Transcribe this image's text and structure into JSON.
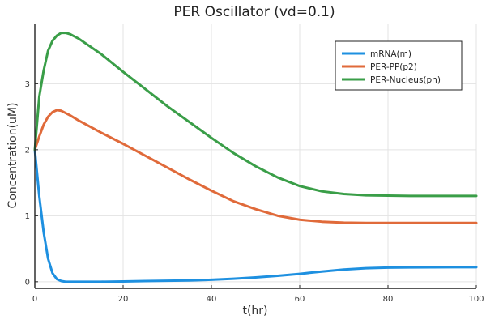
{
  "chart_data": {
    "type": "line",
    "title": "PER Oscillator (vd=0.1)",
    "xlabel": "t(hr)",
    "ylabel": "Concentration(uM)",
    "xlim": [
      0,
      100
    ],
    "ylim": [
      -0.1,
      3.9
    ],
    "xticks": [
      0,
      20,
      40,
      60,
      80,
      100
    ],
    "yticks": [
      0,
      1,
      2,
      3
    ],
    "grid": true,
    "legend_position": "top-right",
    "series": [
      {
        "name": "mRNA(m)",
        "color": "#1e90e0",
        "x": [
          0,
          1,
          2,
          3,
          4,
          5,
          6,
          7,
          8,
          10,
          15,
          20,
          25,
          30,
          35,
          40,
          45,
          50,
          55,
          60,
          65,
          70,
          75,
          80,
          85,
          90,
          95,
          100
        ],
        "y": [
          2.0,
          1.3,
          0.75,
          0.35,
          0.13,
          0.04,
          0.01,
          0.0,
          0.0,
          0.0,
          0.0,
          0.005,
          0.01,
          0.015,
          0.02,
          0.03,
          0.045,
          0.065,
          0.09,
          0.12,
          0.155,
          0.185,
          0.205,
          0.215,
          0.218,
          0.219,
          0.22,
          0.22
        ]
      },
      {
        "name": "PER-PP(p2)",
        "color": "#e06a3a",
        "x": [
          0,
          1,
          2,
          3,
          4,
          5,
          6,
          8,
          10,
          15,
          20,
          25,
          30,
          35,
          40,
          45,
          50,
          55,
          60,
          65,
          70,
          75,
          80,
          85,
          90,
          95,
          100
        ],
        "y": [
          2.0,
          2.2,
          2.38,
          2.5,
          2.57,
          2.6,
          2.59,
          2.52,
          2.44,
          2.26,
          2.09,
          1.91,
          1.73,
          1.55,
          1.38,
          1.22,
          1.1,
          1.0,
          0.94,
          0.91,
          0.895,
          0.89,
          0.89,
          0.89,
          0.89,
          0.89,
          0.89
        ]
      },
      {
        "name": "PER-Nucleus(pn)",
        "color": "#3a9e48",
        "x": [
          0,
          1,
          2,
          3,
          4,
          5,
          6,
          7,
          8,
          10,
          15,
          20,
          25,
          30,
          35,
          40,
          45,
          50,
          55,
          60,
          65,
          70,
          75,
          80,
          85,
          90,
          95,
          100
        ],
        "y": [
          2.0,
          2.8,
          3.2,
          3.5,
          3.65,
          3.73,
          3.77,
          3.77,
          3.75,
          3.68,
          3.45,
          3.18,
          2.92,
          2.66,
          2.42,
          2.18,
          1.95,
          1.75,
          1.58,
          1.45,
          1.37,
          1.33,
          1.31,
          1.305,
          1.3,
          1.3,
          1.3,
          1.3
        ]
      }
    ]
  }
}
